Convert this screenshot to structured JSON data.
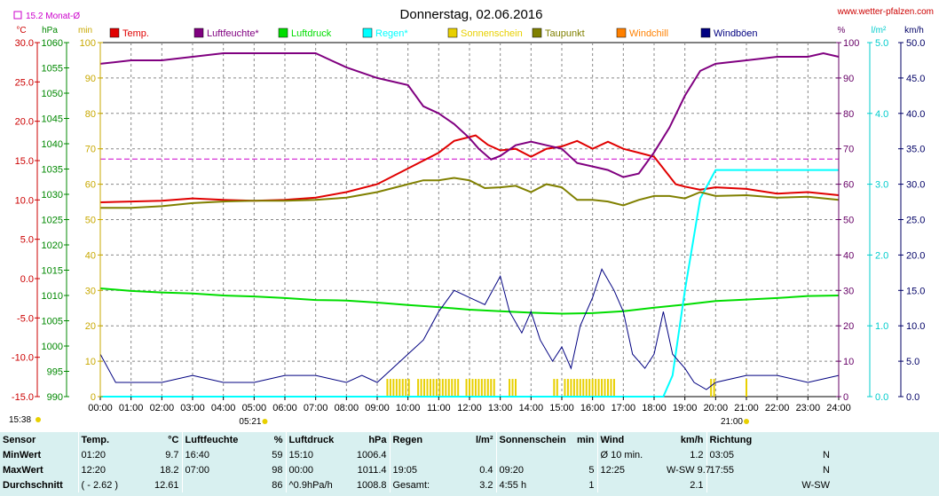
{
  "header": {
    "title": "Donnerstag, 02.06.2016",
    "website": "www.wetter-pfalzen.com",
    "monthly_avg_label": "15.2 Monat-Ø"
  },
  "chart_data": {
    "type": "line",
    "title": "Donnerstag, 02.06.2016",
    "x_ticks": [
      "00:00",
      "01:00",
      "02:00",
      "03:00",
      "04:00",
      "05:00",
      "06:00",
      "07:00",
      "08:00",
      "09:00",
      "10:00",
      "11:00",
      "12:00",
      "13:00",
      "14:00",
      "15:00",
      "16:00",
      "17:00",
      "18:00",
      "19:00",
      "20:00",
      "21:00",
      "22:00",
      "23:00",
      "24:00"
    ],
    "axes": {
      "temp": {
        "unit": "°C",
        "range": [
          -15,
          30
        ],
        "ticks": [
          "30.0",
          "25.0",
          "20.0",
          "15.0",
          "10.0",
          "5.0",
          "0.0",
          "-5.0",
          "-10.0",
          "-15.0"
        ],
        "color": "#cc0000"
      },
      "pressure": {
        "unit": "hPa",
        "range": [
          990,
          1060
        ],
        "ticks": [
          "1060",
          "1055",
          "1050",
          "1045",
          "1040",
          "1035",
          "1030",
          "1025",
          "1020",
          "1015",
          "1010",
          "1005",
          "1000",
          "995",
          "990"
        ],
        "color": "#008800"
      },
      "sun": {
        "unit": "min",
        "range": [
          0,
          100
        ],
        "ticks": [
          "100",
          "90",
          "80",
          "70",
          "60",
          "50",
          "40",
          "30",
          "20",
          "10",
          "0"
        ],
        "color": "#c8a800"
      },
      "humidity": {
        "unit": "%",
        "range": [
          0,
          100
        ],
        "ticks": [
          "100",
          "90",
          "80",
          "70",
          "60",
          "50",
          "40",
          "30",
          "20",
          "10",
          "0"
        ],
        "color": "#660066"
      },
      "rain": {
        "unit": "l/m²",
        "range": [
          0,
          5
        ],
        "ticks": [
          "5.0",
          "4.0",
          "3.0",
          "2.0",
          "1.0",
          "0.0"
        ],
        "color": "#00cccc"
      },
      "wind": {
        "unit": "km/h",
        "range": [
          0,
          50
        ],
        "ticks": [
          "50.0",
          "45.0",
          "40.0",
          "35.0",
          "30.0",
          "25.0",
          "20.0",
          "15.0",
          "10.0",
          "5.0",
          "0.0"
        ],
        "color": "#000066"
      }
    },
    "legend": [
      {
        "name": "Temp.",
        "color": "#e00000"
      },
      {
        "name": "Luftfeuchte*",
        "color": "#800080"
      },
      {
        "name": "Luftdruck",
        "color": "#00dd00"
      },
      {
        "name": "Regen*",
        "color": "#00ffff"
      },
      {
        "name": "Sonnenschein",
        "color": "#e8d000"
      },
      {
        "name": "Taupunkt",
        "color": "#808000"
      },
      {
        "name": "Windchill",
        "color": "#ff8000"
      },
      {
        "name": "Windböen",
        "color": "#000080"
      }
    ],
    "monthly_avg_temp": 15.2,
    "sunrise": "05:21",
    "sunset": "21:00",
    "bottom_left_time": "15:38",
    "series": [
      {
        "name": "Temp.",
        "axis": "temp",
        "color": "#e00000",
        "points": [
          [
            0,
            9.7
          ],
          [
            1,
            9.8
          ],
          [
            2,
            9.9
          ],
          [
            3,
            10.2
          ],
          [
            4,
            10.0
          ],
          [
            5,
            9.9
          ],
          [
            6,
            10.0
          ],
          [
            7,
            10.3
          ],
          [
            8,
            11.0
          ],
          [
            9,
            12.0
          ],
          [
            10,
            14.0
          ],
          [
            11,
            16.0
          ],
          [
            11.5,
            17.5
          ],
          [
            12.2,
            18.2
          ],
          [
            12.6,
            17.0
          ],
          [
            13,
            16.3
          ],
          [
            13.5,
            16.5
          ],
          [
            14,
            15.5
          ],
          [
            14.5,
            16.5
          ],
          [
            15,
            16.8
          ],
          [
            15.5,
            17.5
          ],
          [
            16,
            16.5
          ],
          [
            16.5,
            17.4
          ],
          [
            17,
            16.5
          ],
          [
            17.5,
            16.0
          ],
          [
            18,
            15.5
          ],
          [
            18.3,
            14.0
          ],
          [
            18.7,
            12.0
          ],
          [
            19,
            11.7
          ],
          [
            19.5,
            11.3
          ],
          [
            20,
            11.6
          ],
          [
            21,
            11.4
          ],
          [
            22,
            10.8
          ],
          [
            23,
            11.0
          ],
          [
            24,
            10.6
          ]
        ]
      },
      {
        "name": "Luftfeuchte*",
        "axis": "humidity",
        "color": "#800080",
        "points": [
          [
            0,
            94
          ],
          [
            1,
            95
          ],
          [
            2,
            95
          ],
          [
            3,
            96
          ],
          [
            4,
            97
          ],
          [
            5,
            97
          ],
          [
            6,
            97
          ],
          [
            7,
            97
          ],
          [
            7.5,
            95
          ],
          [
            8,
            93
          ],
          [
            9,
            90
          ],
          [
            10,
            88
          ],
          [
            10.5,
            82
          ],
          [
            11,
            80
          ],
          [
            11.5,
            77
          ],
          [
            12,
            73
          ],
          [
            12.3,
            70
          ],
          [
            12.7,
            67
          ],
          [
            13,
            68
          ],
          [
            13.5,
            71
          ],
          [
            14,
            72
          ],
          [
            14.5,
            71
          ],
          [
            15,
            70
          ],
          [
            15.5,
            66
          ],
          [
            16,
            65
          ],
          [
            16.5,
            64
          ],
          [
            17,
            62
          ],
          [
            17.5,
            63
          ],
          [
            18,
            69
          ],
          [
            18.5,
            76
          ],
          [
            19,
            85
          ],
          [
            19.5,
            92
          ],
          [
            20,
            94
          ],
          [
            21,
            95
          ],
          [
            22,
            96
          ],
          [
            23,
            96
          ],
          [
            23.5,
            97
          ],
          [
            24,
            96
          ]
        ]
      },
      {
        "name": "Luftdruck",
        "axis": "pressure",
        "color": "#00dd00",
        "points": [
          [
            0,
            1011.4
          ],
          [
            1,
            1010.9
          ],
          [
            2,
            1010.6
          ],
          [
            3,
            1010.4
          ],
          [
            4,
            1010.0
          ],
          [
            5,
            1009.8
          ],
          [
            6,
            1009.5
          ],
          [
            7,
            1009.1
          ],
          [
            8,
            1009.0
          ],
          [
            9,
            1008.6
          ],
          [
            10,
            1008.1
          ],
          [
            11,
            1007.7
          ],
          [
            12,
            1007.2
          ],
          [
            13,
            1006.9
          ],
          [
            14,
            1006.6
          ],
          [
            15,
            1006.4
          ],
          [
            16,
            1006.5
          ],
          [
            17,
            1006.9
          ],
          [
            18,
            1007.6
          ],
          [
            19,
            1008.2
          ],
          [
            20,
            1008.9
          ],
          [
            21,
            1009.2
          ],
          [
            22,
            1009.5
          ],
          [
            23,
            1009.9
          ],
          [
            24,
            1010.0
          ]
        ]
      },
      {
        "name": "Regen*",
        "axis": "rain",
        "color": "#00ffff",
        "points": [
          [
            0,
            0
          ],
          [
            18.3,
            0
          ],
          [
            18.6,
            0.3
          ],
          [
            19,
            1.5
          ],
          [
            19.5,
            2.8
          ],
          [
            20,
            3.2
          ],
          [
            20.5,
            3.2
          ],
          [
            24,
            3.2
          ]
        ]
      },
      {
        "name": "Taupunkt",
        "axis": "temp",
        "color": "#808000",
        "points": [
          [
            0,
            9.0
          ],
          [
            1,
            9.0
          ],
          [
            2,
            9.2
          ],
          [
            3,
            9.6
          ],
          [
            4,
            9.8
          ],
          [
            5,
            9.9
          ],
          [
            6,
            9.9
          ],
          [
            7,
            10.0
          ],
          [
            8,
            10.3
          ],
          [
            9,
            11.0
          ],
          [
            10,
            12.0
          ],
          [
            10.5,
            12.5
          ],
          [
            11,
            12.5
          ],
          [
            11.5,
            12.8
          ],
          [
            12,
            12.5
          ],
          [
            12.5,
            11.5
          ],
          [
            13,
            11.6
          ],
          [
            13.5,
            11.8
          ],
          [
            14,
            11.0
          ],
          [
            14.5,
            12.0
          ],
          [
            15,
            11.6
          ],
          [
            15.5,
            10.0
          ],
          [
            16,
            10.0
          ],
          [
            16.5,
            9.8
          ],
          [
            17,
            9.3
          ],
          [
            17.5,
            10.0
          ],
          [
            18,
            10.5
          ],
          [
            18.5,
            10.5
          ],
          [
            19,
            10.2
          ],
          [
            19.5,
            11.0
          ],
          [
            20,
            10.5
          ],
          [
            21,
            10.6
          ],
          [
            22,
            10.3
          ],
          [
            23,
            10.4
          ],
          [
            24,
            10.0
          ]
        ]
      },
      {
        "name": "Windböen",
        "axis": "wind",
        "color": "#000080",
        "points": [
          [
            0,
            6
          ],
          [
            0.5,
            2
          ],
          [
            1,
            2
          ],
          [
            2,
            2
          ],
          [
            3,
            3
          ],
          [
            4,
            2
          ],
          [
            5,
            2
          ],
          [
            6,
            3
          ],
          [
            7,
            3
          ],
          [
            8,
            2
          ],
          [
            8.5,
            3
          ],
          [
            9,
            2
          ],
          [
            9.5,
            4
          ],
          [
            10,
            6
          ],
          [
            10.5,
            8
          ],
          [
            11,
            12
          ],
          [
            11.5,
            15
          ],
          [
            12,
            14
          ],
          [
            12.5,
            13
          ],
          [
            13,
            17
          ],
          [
            13.3,
            12
          ],
          [
            13.7,
            9
          ],
          [
            14,
            12
          ],
          [
            14.3,
            8
          ],
          [
            14.7,
            5
          ],
          [
            15,
            7
          ],
          [
            15.3,
            4
          ],
          [
            15.6,
            10
          ],
          [
            16,
            14
          ],
          [
            16.3,
            18
          ],
          [
            16.7,
            15
          ],
          [
            17,
            12
          ],
          [
            17.3,
            6
          ],
          [
            17.7,
            4
          ],
          [
            18,
            6
          ],
          [
            18.3,
            12
          ],
          [
            18.6,
            6
          ],
          [
            19,
            4
          ],
          [
            19.3,
            2
          ],
          [
            19.7,
            1
          ],
          [
            20,
            2
          ],
          [
            21,
            3
          ],
          [
            22,
            3
          ],
          [
            23,
            2
          ],
          [
            24,
            3
          ]
        ]
      }
    ],
    "sunshine_bars": {
      "axis": "sun",
      "color": "#e8d000",
      "intervals": [
        [
          9.33,
          10.05
        ],
        [
          10.33,
          11.7
        ],
        [
          11.9,
          12.85
        ],
        [
          13.3,
          13.5
        ],
        [
          14.75,
          14.85
        ],
        [
          15.1,
          16.75
        ],
        [
          19.85,
          19.95
        ],
        [
          21.0,
          21.05
        ]
      ],
      "height": 5
    }
  },
  "stats": {
    "headers": [
      {
        "label": "Sensor",
        "unit": ""
      },
      {
        "label": "Temp.",
        "unit": "°C"
      },
      {
        "label": "Luftfeuchte",
        "unit": "%"
      },
      {
        "label": "Luftdruck",
        "unit": "hPa"
      },
      {
        "label": "Regen",
        "unit": "l/m²"
      },
      {
        "label": "Sonnenschein",
        "unit": "min"
      },
      {
        "label": "Wind",
        "unit": "km/h"
      },
      {
        "label": "Richtung",
        "unit": ""
      }
    ],
    "rows": [
      {
        "label": "MinWert",
        "cells": [
          [
            "01:20",
            "9.7"
          ],
          [
            "16:40",
            "59"
          ],
          [
            "15:10",
            "1006.4"
          ],
          [
            "",
            ""
          ],
          [
            "",
            ""
          ],
          [
            "Ø 10 min.",
            "1.2"
          ],
          [
            "03:05",
            "N"
          ]
        ]
      },
      {
        "label": "MaxWert",
        "cells": [
          [
            "12:20",
            "18.2"
          ],
          [
            "07:00",
            "98"
          ],
          [
            "00:00",
            "1011.4"
          ],
          [
            "19:05",
            "0.4"
          ],
          [
            "09:20",
            "5"
          ],
          [
            "12:25",
            "W-SW 9.7"
          ],
          [
            "17:55",
            "N"
          ]
        ]
      },
      {
        "label": "Durchschnitt",
        "cells": [
          [
            "( - 2.62 )",
            "12.61"
          ],
          [
            "",
            "86"
          ],
          [
            "^0.9hPa/h",
            "1008.8"
          ],
          [
            "Gesamt:",
            "3.2"
          ],
          [
            "4:55 h",
            "1"
          ],
          [
            "",
            "2.1"
          ],
          [
            "",
            "W-SW"
          ]
        ]
      }
    ]
  }
}
